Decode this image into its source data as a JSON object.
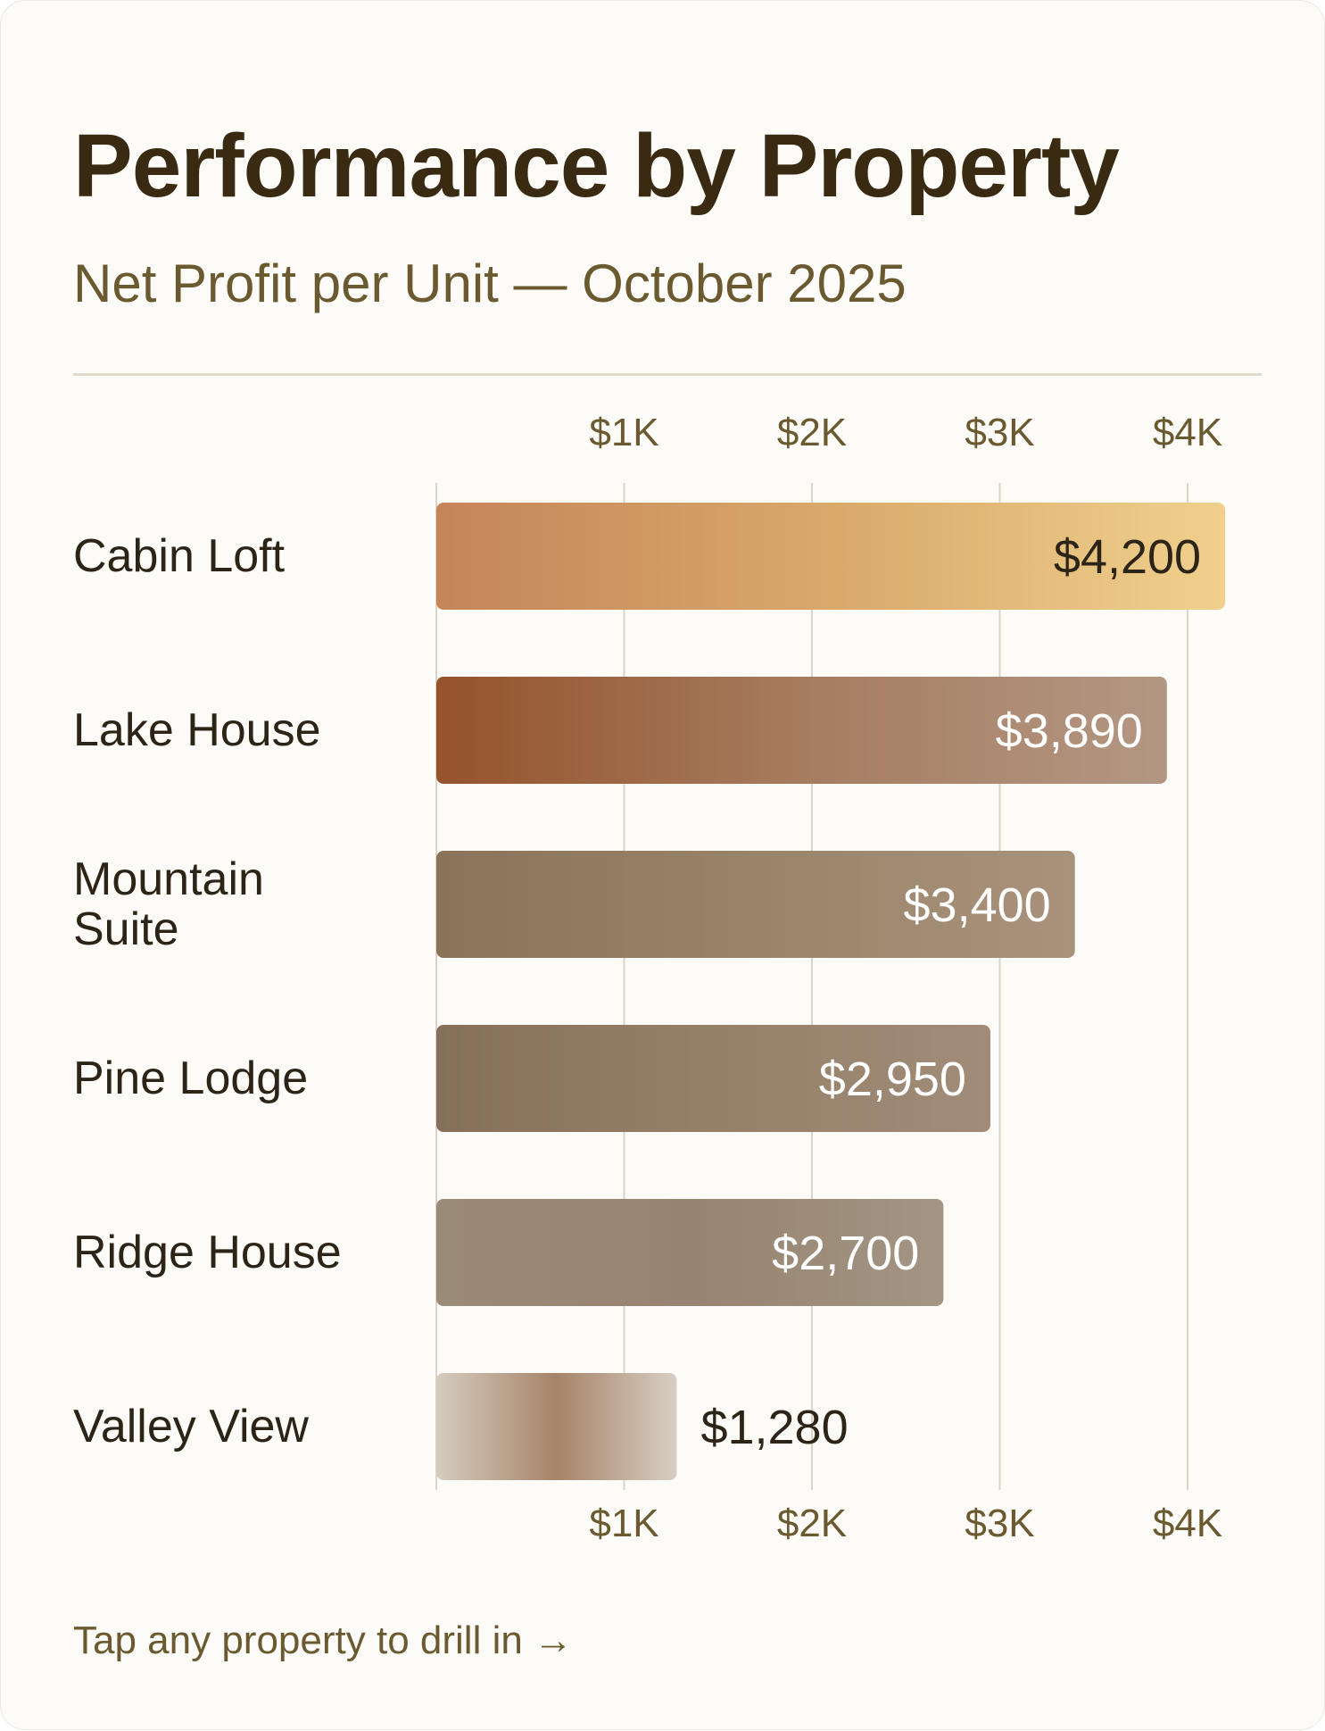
{
  "title": "Performance by Property",
  "subtitle": "Net Profit per Unit — October 2025",
  "footer": "Tap any property to drill in →",
  "colors": {
    "title": "#3a2a12",
    "subtitle": "#6b5a30",
    "grid": "#dcd4c9",
    "label": "#2c2416"
  },
  "chart_data": {
    "type": "bar",
    "orientation": "horizontal",
    "xlim": [
      0,
      4200
    ],
    "ticks": [
      1000,
      2000,
      3000,
      4000
    ],
    "tick_labels": [
      "$1K",
      "$2K",
      "$3K",
      "$4K"
    ],
    "categories": [
      [
        "Cabin Loft"
      ],
      [
        "Lake House"
      ],
      [
        "Mountain",
        "Suite"
      ],
      [
        "Pine Lodge"
      ],
      [
        "Ridge House"
      ],
      [
        "Valley View"
      ]
    ],
    "values": [
      4200,
      3890,
      3400,
      2950,
      2700,
      1280
    ],
    "value_labels": [
      "$4,200",
      "$3,890",
      "$3,400",
      "$2,950",
      "$2,700",
      "$1,280"
    ],
    "value_label_placement": [
      "inside",
      "inside",
      "inside",
      "inside",
      "inside",
      "outside"
    ],
    "bar_colors": [
      [
        "#c5855a",
        "#d9a96a",
        "#f0d08c"
      ],
      [
        "#95532c",
        "#a67c5f",
        "#b39783"
      ],
      [
        "#8a7358",
        "#9a8468",
        "#a8927c"
      ],
      [
        "#86705a",
        "#958068",
        "#a08c78"
      ],
      [
        "#9a8a78",
        "#978470",
        "#a39484"
      ],
      [
        "#d6ccc0",
        "#a68468",
        "#d8cec4"
      ]
    ],
    "value_label_colors": [
      "#2c2416",
      "#ffffff",
      "#ffffff",
      "#ffffff",
      "#ffffff",
      "#2c2416"
    ],
    "grid": true
  }
}
